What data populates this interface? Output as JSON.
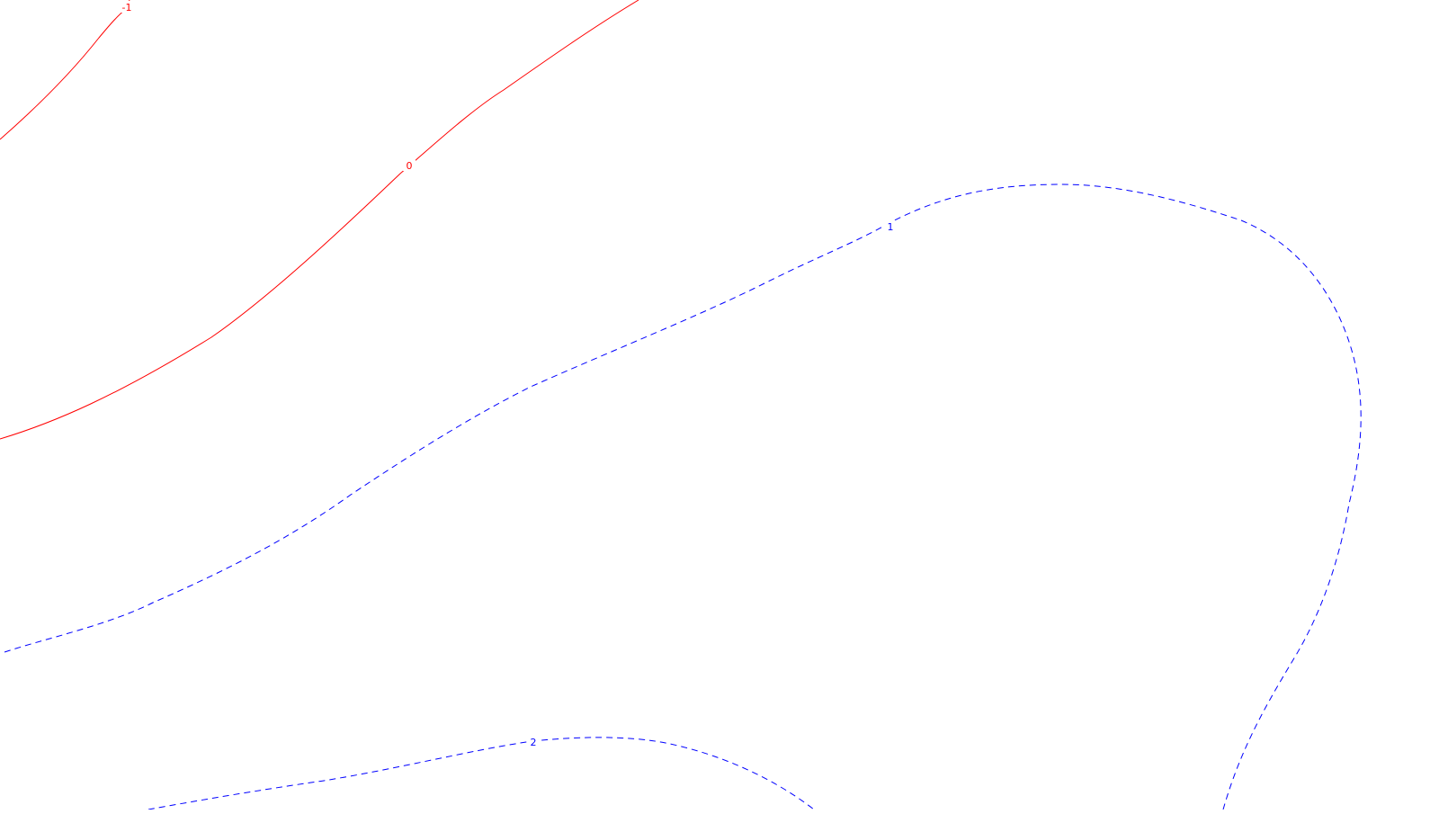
{
  "contours": [
    {
      "id": "contour-level-neg1",
      "level_label": "-1",
      "color": "#ff0000",
      "style": "solid"
    },
    {
      "id": "contour-level-0",
      "level_label": "0",
      "color": "#ff0000",
      "style": "solid"
    },
    {
      "id": "contour-level-1",
      "level_label": "1",
      "color": "#0000ff",
      "style": "dashed"
    },
    {
      "id": "contour-level-2",
      "level_label": "2",
      "color": "#0000ff",
      "style": "dashed"
    }
  ]
}
